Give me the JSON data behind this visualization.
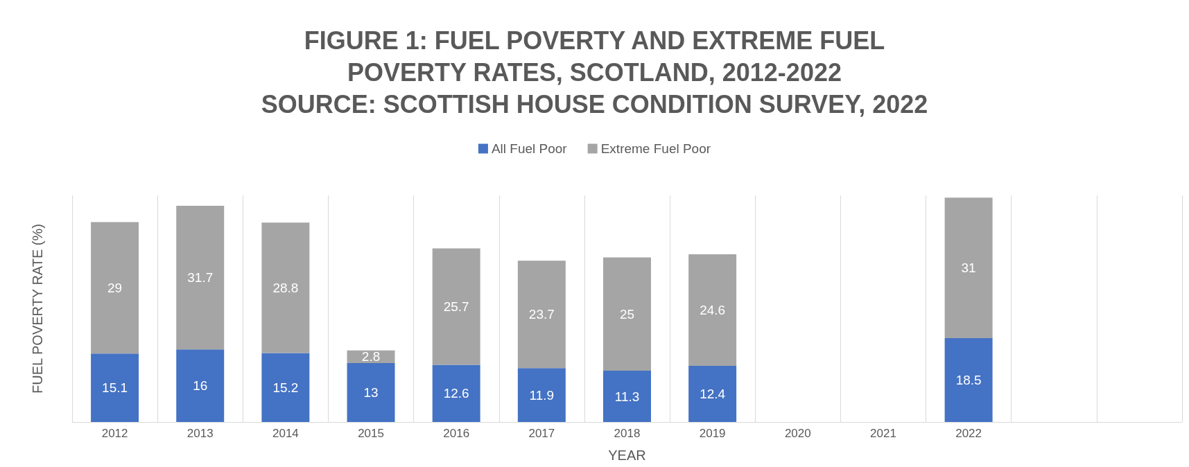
{
  "chart_data": {
    "type": "bar",
    "title": "FIGURE 1: FUEL POVERTY AND EXTREME FUEL\nPOVERTY RATES, SCOTLAND, 2012-2022\nSOURCE: SCOTTISH HOUSE CONDITION SURVEY, 2022",
    "xlabel": "YEAR",
    "ylabel": "FUEL POVERTY RATE (%)",
    "categories": [
      "2012",
      "2013",
      "2014",
      "2015",
      "2016",
      "2017",
      "2018",
      "2019",
      "2020",
      "2021",
      "2022",
      null,
      null
    ],
    "stacked": true,
    "data_labels": true,
    "grid": "x",
    "legend": "top",
    "tick_labels": "x",
    "series": [
      {
        "name": "All Fuel Poor",
        "color": "#4472c4",
        "values": [
          15.1,
          16,
          15.2,
          13,
          12.6,
          11.9,
          11.3,
          12.4,
          null,
          null,
          18.5,
          null,
          null
        ]
      },
      {
        "name": "Extreme Fuel Poor",
        "color": "#a5a5a5",
        "values": [
          29,
          31.7,
          28.8,
          2.8,
          25.7,
          23.7,
          25,
          24.6,
          null,
          null,
          31,
          null,
          null
        ]
      }
    ]
  }
}
